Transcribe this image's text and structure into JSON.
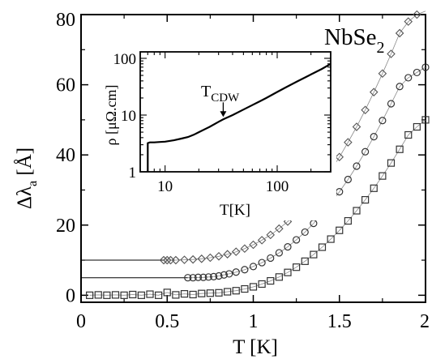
{
  "chart_data": [
    {
      "id": "main",
      "type": "scatter",
      "title": "",
      "annotation": {
        "base": "NbSe",
        "sub": "2"
      },
      "xlabel": "T [K]",
      "ylabel": {
        "pre": "Δλ",
        "sub": "a",
        "post": " [Å]"
      },
      "xlim": [
        0,
        2
      ],
      "ylim": [
        -2,
        80
      ],
      "xticks": [
        0,
        0.5,
        1,
        1.5,
        2
      ],
      "xtick_labels": [
        "0",
        "0.5",
        "1",
        "1.5",
        "2"
      ],
      "yticks": [
        0,
        20,
        40,
        60,
        80
      ],
      "ytick_labels": [
        "0",
        "20",
        "40",
        "60",
        "80"
      ],
      "grid": false,
      "legend": "none",
      "series": [
        {
          "marker": "diamond",
          "color": "#555555",
          "offset": 10,
          "line_from": 0,
          "x": [
            0.48,
            0.5,
            0.52,
            0.55,
            0.6,
            0.65,
            0.7,
            0.75,
            0.8,
            0.85,
            0.9,
            0.95,
            1.0,
            1.05,
            1.1,
            1.15,
            1.2,
            1.25,
            1.3,
            1.35,
            1.4,
            1.45,
            1.5,
            1.55,
            1.6,
            1.65,
            1.7,
            1.75,
            1.8,
            1.85,
            1.9,
            1.95,
            2.0
          ],
          "y": [
            10.0,
            10.0,
            10.0,
            10.0,
            10.1,
            10.2,
            10.4,
            10.7,
            11.1,
            11.7,
            12.4,
            13.3,
            14.4,
            15.7,
            17.2,
            19.0,
            21.0,
            23.3,
            25.9,
            28.8,
            32.0,
            35.6,
            39.4,
            43.6,
            48.0,
            52.8,
            57.9,
            63.2,
            68.8,
            74.7,
            78.0,
            80.0,
            81.0
          ]
        },
        {
          "marker": "circle",
          "color": "#333333",
          "offset": 5,
          "line_from": 0,
          "x": [
            0.62,
            0.65,
            0.68,
            0.71,
            0.74,
            0.77,
            0.8,
            0.83,
            0.86,
            0.9,
            0.95,
            1.0,
            1.05,
            1.1,
            1.15,
            1.2,
            1.25,
            1.3,
            1.35,
            1.4,
            1.45,
            1.5,
            1.55,
            1.6,
            1.65,
            1.7,
            1.75,
            1.8,
            1.85,
            1.9,
            1.95,
            2.0
          ],
          "y": [
            5.0,
            5.0,
            5.1,
            5.1,
            5.2,
            5.3,
            5.5,
            5.8,
            6.1,
            6.6,
            7.3,
            8.2,
            9.3,
            10.6,
            12.1,
            13.8,
            15.8,
            18.0,
            20.5,
            23.2,
            26.2,
            29.5,
            33.0,
            36.8,
            40.9,
            45.2,
            49.8,
            54.6,
            59.5,
            62.0,
            63.5,
            65.0
          ]
        },
        {
          "marker": "square",
          "color": "#333333",
          "offset": 0,
          "line_from": null,
          "x": [
            0.05,
            0.1,
            0.15,
            0.2,
            0.25,
            0.3,
            0.35,
            0.4,
            0.45,
            0.5,
            0.55,
            0.6,
            0.65,
            0.7,
            0.75,
            0.8,
            0.85,
            0.9,
            0.95,
            1.0,
            1.05,
            1.1,
            1.15,
            1.2,
            1.25,
            1.3,
            1.35,
            1.4,
            1.45,
            1.5,
            1.55,
            1.6,
            1.65,
            1.7,
            1.75,
            1.8,
            1.85,
            1.9,
            1.95,
            2.0
          ],
          "y": [
            0.0,
            0.1,
            0.0,
            0.1,
            0.0,
            0.2,
            0.0,
            0.3,
            0.0,
            0.8,
            0.1,
            0.4,
            0.2,
            0.5,
            0.6,
            0.7,
            1.0,
            1.3,
            1.8,
            2.4,
            3.2,
            4.1,
            5.2,
            6.5,
            8.0,
            9.7,
            11.6,
            13.7,
            16.0,
            18.5,
            21.2,
            24.1,
            27.2,
            30.5,
            34.0,
            37.7,
            41.6,
            45.7,
            48.0,
            50.0
          ]
        }
      ]
    },
    {
      "id": "inset",
      "type": "line",
      "xlabel": "T[K]",
      "ylabel": "ρ [μΩ.cm]",
      "xscale": "log",
      "yscale": "log",
      "xlim": [
        6,
        300
      ],
      "ylim": [
        1,
        130
      ],
      "xticks": [
        10,
        100
      ],
      "xtick_labels": [
        "10",
        "100"
      ],
      "yticks": [
        1,
        10,
        100
      ],
      "ytick_labels": [
        "1",
        "10",
        "100"
      ],
      "grid": false,
      "annotation": {
        "base": "T",
        "sub": "CDW",
        "x": 33
      },
      "series": [
        {
          "x": [
            7.0,
            7.0,
            7.3,
            8,
            9,
            10,
            12,
            14,
            16,
            18,
            20,
            25,
            30,
            33,
            40,
            50,
            60,
            70,
            80,
            100,
            120,
            150,
            200,
            250,
            300
          ],
          "y": [
            1.0,
            3.2,
            3.3,
            3.3,
            3.35,
            3.4,
            3.6,
            3.85,
            4.1,
            4.5,
            5.0,
            6.2,
            7.6,
            8.4,
            10.0,
            12.5,
            15.0,
            17.5,
            20.0,
            25.5,
            31.0,
            39.0,
            52.0,
            65.0,
            80.0
          ]
        }
      ]
    }
  ]
}
